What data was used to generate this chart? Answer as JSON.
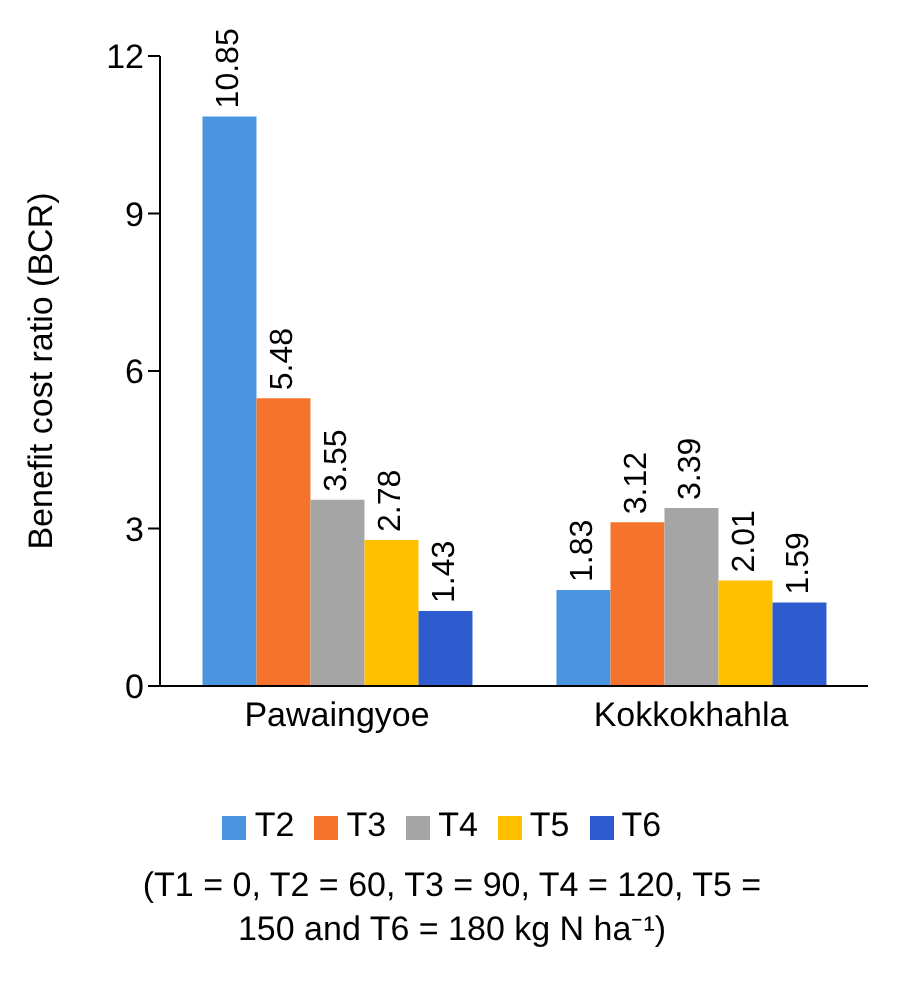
{
  "chart_data": {
    "type": "bar",
    "ylabel": "Benefit cost ratio (BCR)",
    "categories": [
      "Pawaingyoe",
      "Kokkokhahla"
    ],
    "series": [
      {
        "name": "T2",
        "color": "#4a95e0",
        "values": [
          10.85,
          1.83
        ]
      },
      {
        "name": "T3",
        "color": "#f5732a",
        "values": [
          5.48,
          3.12
        ]
      },
      {
        "name": "T4",
        "color": "#a5a5a5",
        "values": [
          3.55,
          3.39
        ]
      },
      {
        "name": "T5",
        "color": "#ffc000",
        "values": [
          2.78,
          2.01
        ]
      },
      {
        "name": "T6",
        "color": "#2e5ccf",
        "values": [
          1.43,
          1.59
        ]
      }
    ],
    "ylim": [
      0,
      12
    ],
    "yticks": [
      0,
      3,
      6,
      9,
      12
    ],
    "data_labels": true,
    "legend": "bottom",
    "annotations": [
      "(T1 = 0, T2 = 60, T3 = 90, T4 = 120, T5 = 150 and T6 = 180 kg N ha⁻¹)"
    ]
  }
}
